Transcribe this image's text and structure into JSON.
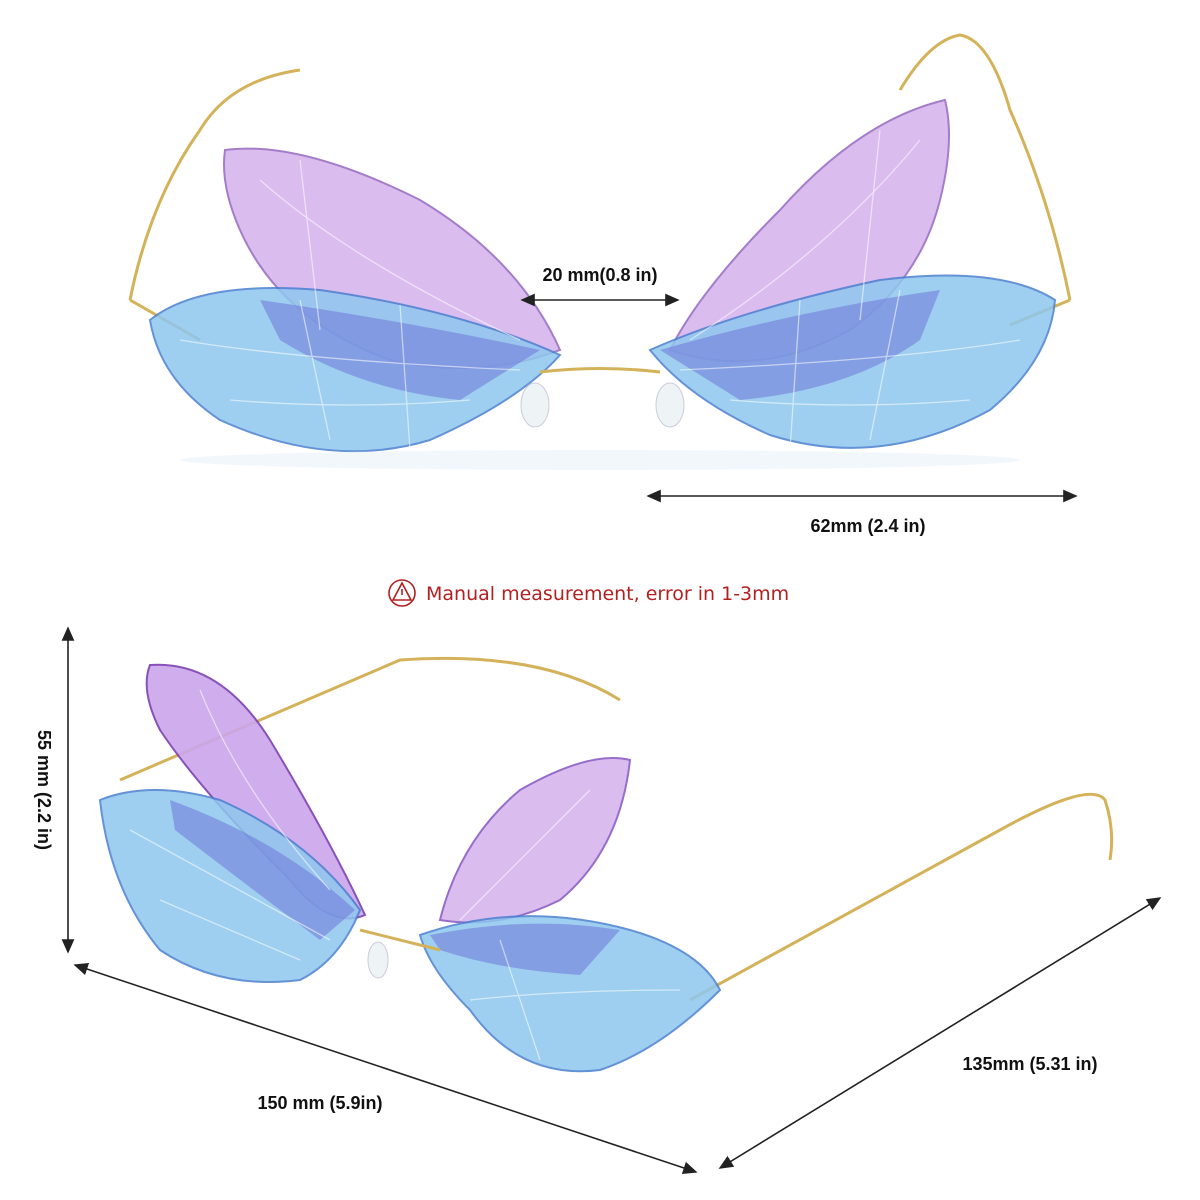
{
  "annotations": {
    "bridge_width": "20 mm(0.8 in)",
    "lens_width": "62mm (2.4 in)",
    "notice": "Manual measurement, error in 1-3mm",
    "lens_height": "55 mm (2.2 in)",
    "frame_width": "150 mm (5.9in)",
    "temple_length": "135mm (5.31 in)"
  }
}
